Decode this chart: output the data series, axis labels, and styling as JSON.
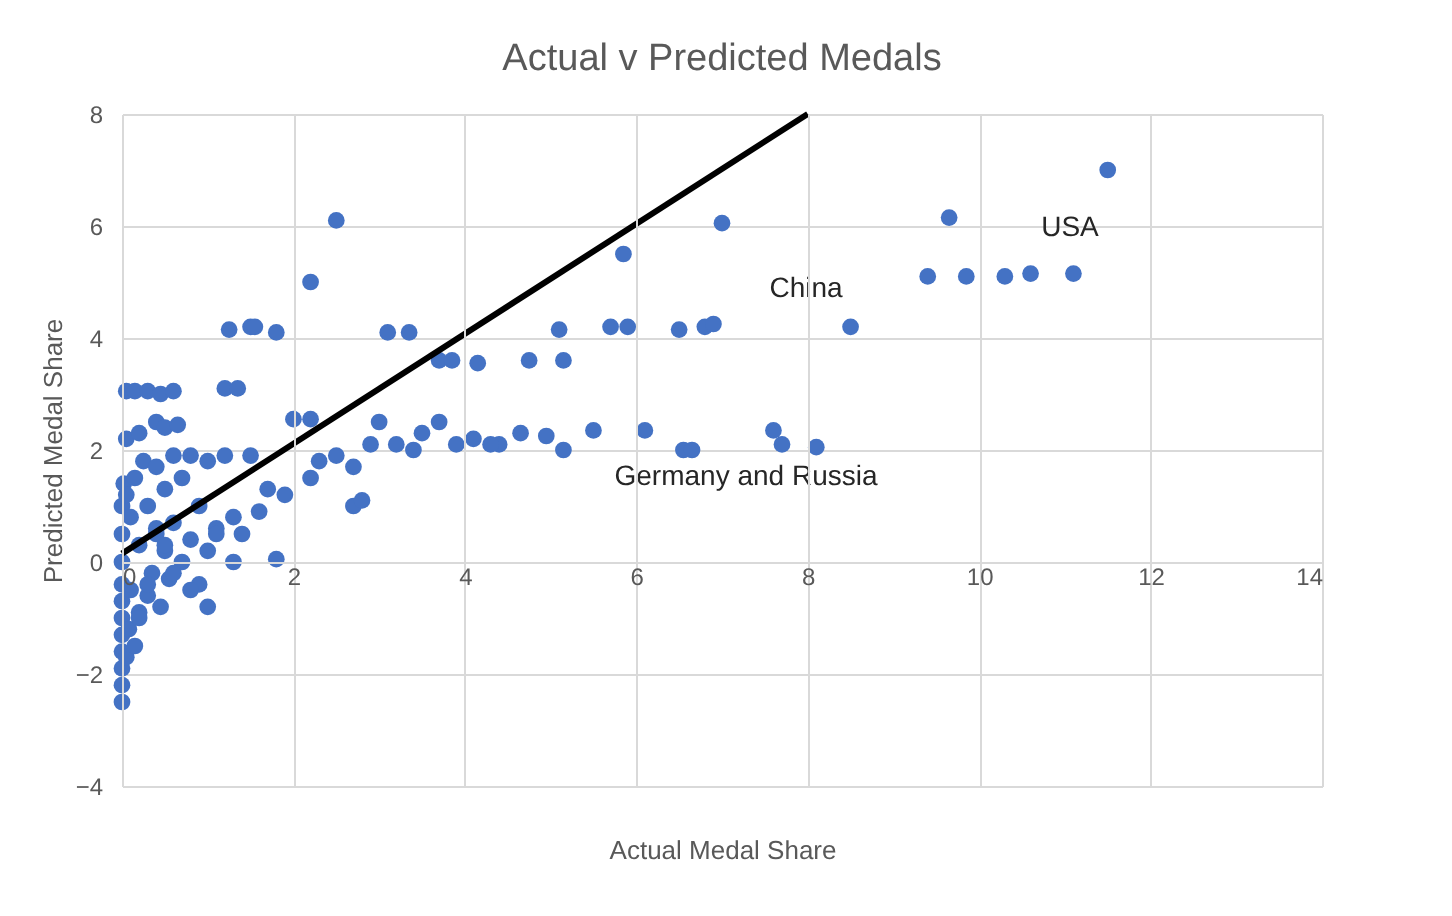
{
  "chart_data": {
    "type": "scatter",
    "title": "Actual v Predicted Medals",
    "xlabel": "Actual Medal Share",
    "ylabel": "Predicted Medal Share",
    "xlim": [
      0,
      14
    ],
    "xticks": [
      0,
      2,
      4,
      6,
      8,
      10,
      12,
      14
    ],
    "ylim": [
      -4,
      8
    ],
    "yticks": [
      -4,
      -2,
      0,
      2,
      4,
      6,
      8
    ],
    "grid": true,
    "marker": "circle",
    "annotations": [
      "USA",
      "China",
      "Germany and Russia"
    ],
    "series": [
      {
        "type": "scatter",
        "color": "#4472c4",
        "x": [
          2.5,
          2.2,
          7.0,
          5.85,
          1.25,
          1.5,
          1.55,
          1.8,
          3.1,
          3.35,
          5.1,
          5.7,
          5.9,
          6.5,
          6.8,
          6.9,
          8.5,
          3.7,
          3.85,
          4.15,
          4.75,
          5.15,
          3.7,
          4.1,
          4.4,
          4.65,
          4.95,
          5.15,
          5.5,
          6.1,
          6.55,
          6.65,
          7.6,
          7.7,
          8.1,
          3.5,
          3.9,
          4.3,
          3.0,
          2.9,
          3.2,
          3.4,
          11.5,
          9.65,
          9.4,
          9.85,
          10.3,
          10.6,
          11.1,
          0.05,
          0.15,
          0.3,
          0.45,
          0.6,
          1.2,
          1.35,
          0.05,
          0.2,
          0.4,
          0.5,
          0.65,
          1.0,
          1.8,
          2.0,
          2.2,
          2.5,
          2.7,
          2.8,
          2.7,
          2.2,
          2.3,
          1.5,
          1.7,
          0.0,
          0.0,
          0.0,
          0.0,
          0.0,
          0.0,
          0.0,
          0.0,
          0.0,
          0.0,
          0.0,
          0.02,
          0.05,
          0.05,
          0.08,
          0.1,
          0.1,
          0.15,
          0.15,
          0.2,
          0.2,
          0.25,
          0.3,
          0.3,
          0.35,
          0.4,
          0.4,
          0.45,
          0.5,
          0.5,
          0.55,
          0.6,
          0.6,
          0.7,
          0.7,
          0.8,
          0.8,
          0.9,
          0.9,
          1.0,
          1.0,
          1.1,
          1.2,
          1.3,
          1.4,
          1.6,
          1.9,
          0.3,
          0.5,
          0.8,
          1.1,
          1.3,
          0.2,
          0.4,
          0.6
        ],
        "values": [
          6.1,
          5.0,
          6.05,
          5.5,
          4.15,
          4.2,
          4.2,
          4.1,
          4.1,
          4.1,
          4.15,
          4.2,
          4.2,
          4.15,
          4.2,
          4.25,
          4.2,
          3.6,
          3.6,
          3.55,
          3.6,
          3.6,
          2.5,
          2.2,
          2.1,
          2.3,
          2.25,
          2.0,
          2.35,
          2.35,
          2.0,
          2.0,
          2.35,
          2.1,
          2.05,
          2.3,
          2.1,
          2.1,
          2.5,
          2.1,
          2.1,
          2.0,
          7.0,
          6.15,
          5.1,
          5.1,
          5.1,
          5.15,
          5.15,
          3.05,
          3.05,
          3.05,
          3.0,
          3.05,
          3.1,
          3.1,
          2.2,
          2.3,
          2.5,
          2.4,
          2.45,
          -0.8,
          0.05,
          2.55,
          2.55,
          1.9,
          1.0,
          1.1,
          1.7,
          1.5,
          1.8,
          1.9,
          1.3,
          -2.5,
          -2.2,
          -1.9,
          -1.6,
          -1.3,
          -1.0,
          -0.7,
          -0.4,
          0.0,
          0.5,
          1.0,
          1.4,
          -1.7,
          1.2,
          -1.2,
          -0.5,
          0.8,
          -1.5,
          1.5,
          -0.9,
          0.3,
          1.8,
          -0.6,
          1.0,
          -0.2,
          0.5,
          1.7,
          -0.8,
          0.2,
          1.3,
          -0.3,
          0.7,
          1.9,
          0.0,
          1.5,
          0.4,
          1.9,
          -0.4,
          1.0,
          0.2,
          1.8,
          0.6,
          1.9,
          0.8,
          0.5,
          0.9,
          1.2,
          -0.4,
          0.3,
          -0.5,
          0.5,
          0.0,
          -1.0,
          0.6,
          -0.2
        ]
      },
      {
        "type": "line",
        "marker": "none",
        "color": "#000000",
        "x": [
          0,
          8
        ],
        "values": [
          0.15,
          8
        ]
      }
    ]
  }
}
